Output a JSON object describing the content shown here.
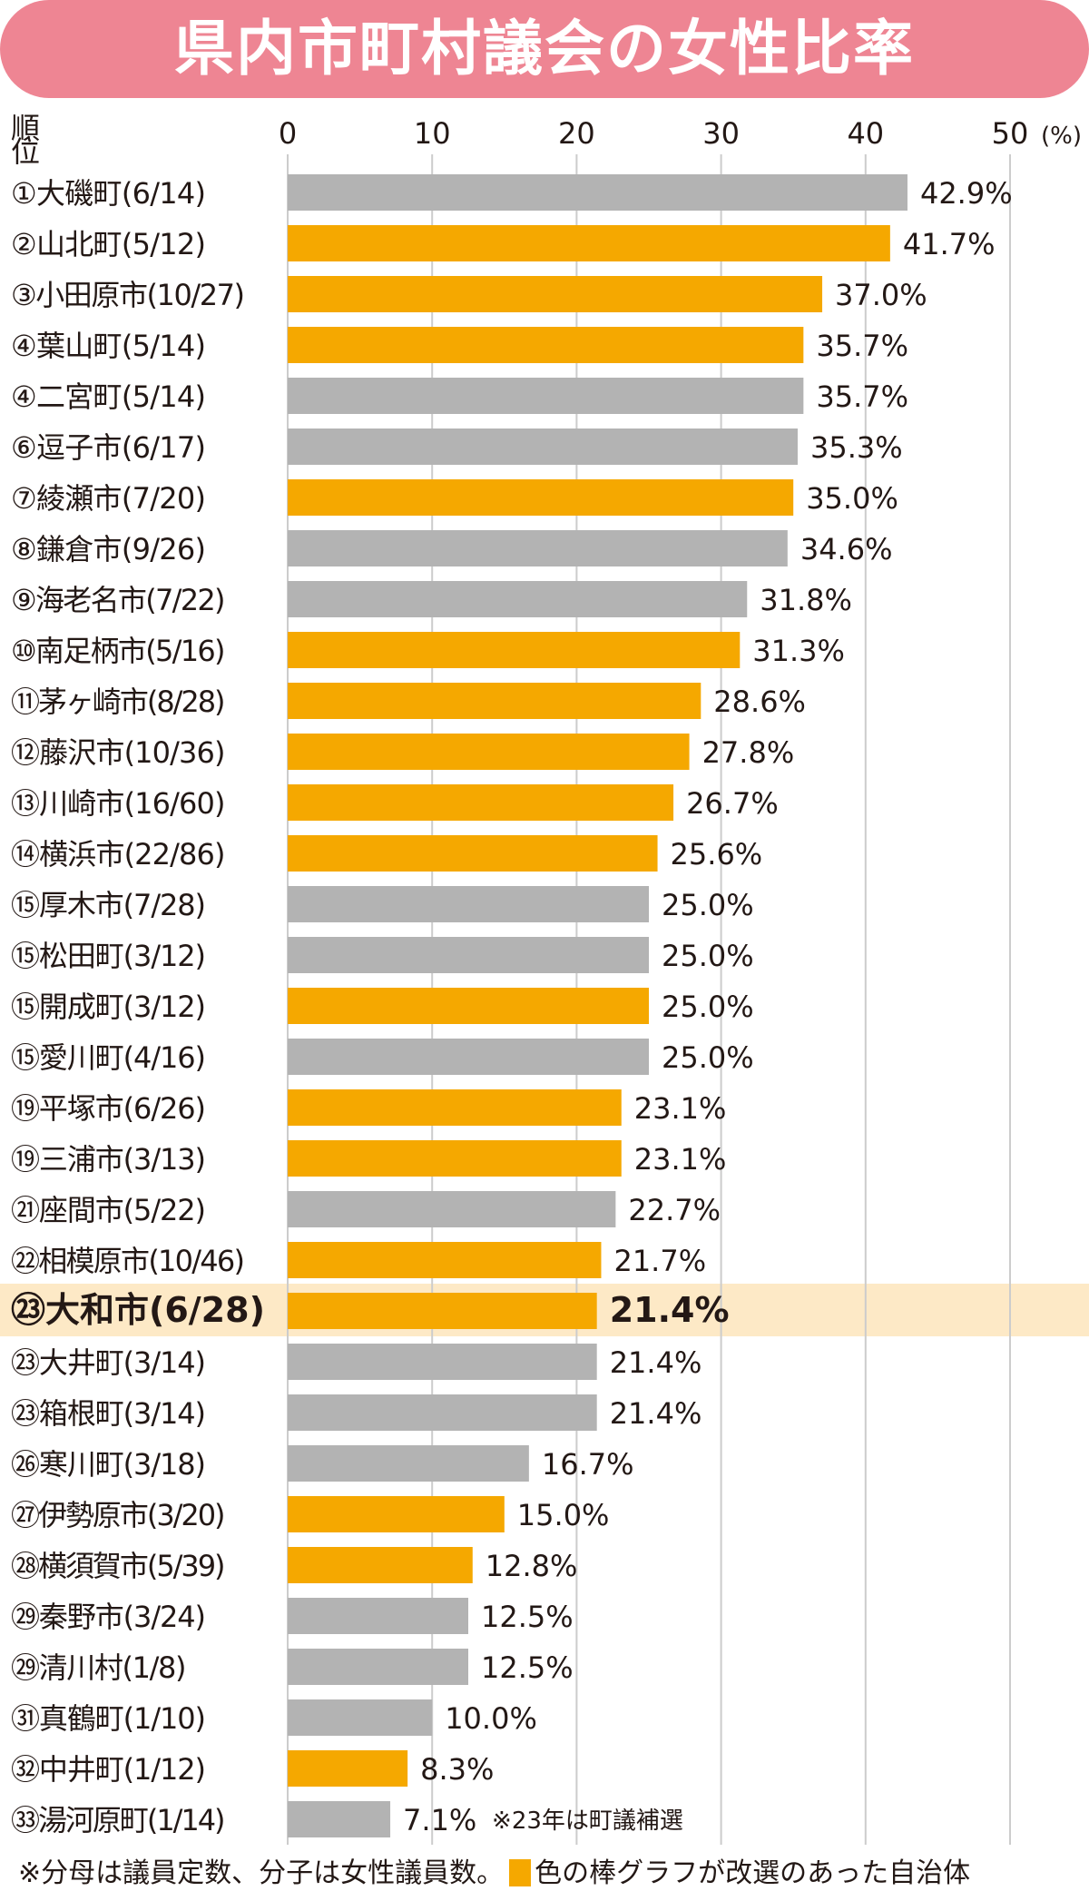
{
  "title": "県内市町村議会の女性比率",
  "footnote_left": "※分母は議員定数、分子は女性議員数。",
  "footnote_right": "色の棒グラフが改選のあった自治体",
  "colors": {
    "reelected": "#f5a800",
    "other": "#b3b3b3",
    "highlight_row": "#fde9c6",
    "title_banner": "#ee8593",
    "grid": "#cccccc"
  },
  "chart_data": {
    "type": "bar",
    "orientation": "horizontal",
    "title": "県内市町村議会の女性比率",
    "category_header": "順位",
    "unit_label": "(%)",
    "xlim": [
      0,
      50
    ],
    "xticks": [
      0,
      10,
      20,
      30,
      40,
      50
    ],
    "grid": true,
    "highlight": "㉓大和市(6/28)",
    "rows": [
      {
        "label": "①大磯町(6/14)",
        "value": 42.9,
        "display": "42.9%",
        "reelected": false
      },
      {
        "label": "②山北町(5/12)",
        "value": 41.7,
        "display": "41.7%",
        "reelected": true
      },
      {
        "label": "③小田原市(10/27)",
        "value": 37.0,
        "display": "37.0%",
        "reelected": true
      },
      {
        "label": "④葉山町(5/14)",
        "value": 35.7,
        "display": "35.7%",
        "reelected": true
      },
      {
        "label": "④二宮町(5/14)",
        "value": 35.7,
        "display": "35.7%",
        "reelected": false
      },
      {
        "label": "⑥逗子市(6/17)",
        "value": 35.3,
        "display": "35.3%",
        "reelected": false
      },
      {
        "label": "⑦綾瀬市(7/20)",
        "value": 35.0,
        "display": "35.0%",
        "reelected": true
      },
      {
        "label": "⑧鎌倉市(9/26)",
        "value": 34.6,
        "display": "34.6%",
        "reelected": false
      },
      {
        "label": "⑨海老名市(7/22)",
        "value": 31.8,
        "display": "31.8%",
        "reelected": false
      },
      {
        "label": "⑩南足柄市(5/16)",
        "value": 31.3,
        "display": "31.3%",
        "reelected": true
      },
      {
        "label": "⑪茅ヶ崎市(8/28)",
        "value": 28.6,
        "display": "28.6%",
        "reelected": true
      },
      {
        "label": "⑫藤沢市(10/36)",
        "value": 27.8,
        "display": "27.8%",
        "reelected": true
      },
      {
        "label": "⑬川崎市(16/60)",
        "value": 26.7,
        "display": "26.7%",
        "reelected": true
      },
      {
        "label": "⑭横浜市(22/86)",
        "value": 25.6,
        "display": "25.6%",
        "reelected": true
      },
      {
        "label": "⑮厚木市(7/28)",
        "value": 25.0,
        "display": "25.0%",
        "reelected": false
      },
      {
        "label": "⑮松田町(3/12)",
        "value": 25.0,
        "display": "25.0%",
        "reelected": false
      },
      {
        "label": "⑮開成町(3/12)",
        "value": 25.0,
        "display": "25.0%",
        "reelected": true
      },
      {
        "label": "⑮愛川町(4/16)",
        "value": 25.0,
        "display": "25.0%",
        "reelected": false
      },
      {
        "label": "⑲平塚市(6/26)",
        "value": 23.1,
        "display": "23.1%",
        "reelected": true
      },
      {
        "label": "⑲三浦市(3/13)",
        "value": 23.1,
        "display": "23.1%",
        "reelected": true
      },
      {
        "label": "㉑座間市(5/22)",
        "value": 22.7,
        "display": "22.7%",
        "reelected": false
      },
      {
        "label": "㉒相模原市(10/46)",
        "value": 21.7,
        "display": "21.7%",
        "reelected": true
      },
      {
        "label": "㉓大和市(6/28)",
        "value": 21.4,
        "display": "21.4%",
        "reelected": true
      },
      {
        "label": "㉓大井町(3/14)",
        "value": 21.4,
        "display": "21.4%",
        "reelected": false
      },
      {
        "label": "㉓箱根町(3/14)",
        "value": 21.4,
        "display": "21.4%",
        "reelected": false
      },
      {
        "label": "㉖寒川町(3/18)",
        "value": 16.7,
        "display": "16.7%",
        "reelected": false
      },
      {
        "label": "㉗伊勢原市(3/20)",
        "value": 15.0,
        "display": "15.0%",
        "reelected": true
      },
      {
        "label": "㉘横須賀市(5/39)",
        "value": 12.8,
        "display": "12.8%",
        "reelected": true
      },
      {
        "label": "㉙秦野市(3/24)",
        "value": 12.5,
        "display": "12.5%",
        "reelected": false
      },
      {
        "label": "㉙清川村(1/8)",
        "value": 12.5,
        "display": "12.5%",
        "reelected": false
      },
      {
        "label": "㉛真鶴町(1/10)",
        "value": 10.0,
        "display": "10.0%",
        "reelected": false
      },
      {
        "label": "㉜中井町(1/12)",
        "value": 8.3,
        "display": "8.3%",
        "reelected": true
      },
      {
        "label": "㉝湯河原町(1/14)",
        "value": 7.1,
        "display": "7.1%",
        "reelected": false,
        "note": "※23年は町議補選"
      }
    ]
  }
}
